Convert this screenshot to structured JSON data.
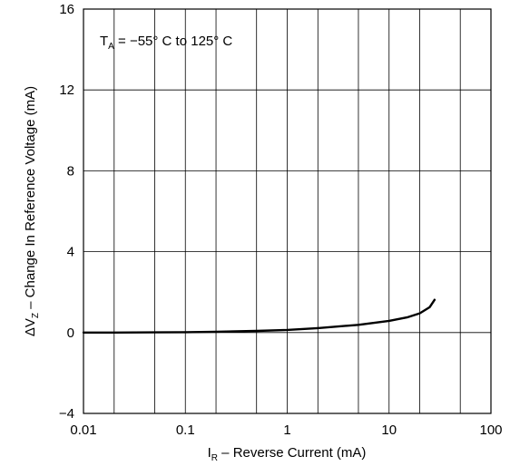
{
  "chart_data": {
    "type": "line",
    "title": "",
    "annotation": {
      "symbol": "T",
      "subscript": "A",
      "text": " = −55° C to 125° C"
    },
    "xlabel": {
      "symbol": "I",
      "subscript": "R",
      "text": " – Reverse Current (mA)"
    },
    "ylabel": {
      "symbol": "ΔV",
      "subscript": "Z",
      "text": " – Change In Reference Voltage (mA)"
    },
    "xscale": "log",
    "xlim": [
      0.01,
      100
    ],
    "ylim": [
      -4,
      16
    ],
    "x_ticks": [
      0.01,
      0.1,
      1,
      10,
      100
    ],
    "x_tick_labels": [
      "0.01",
      "0.1",
      "1",
      "10",
      "100"
    ],
    "y_ticks": [
      -4,
      0,
      4,
      8,
      12,
      16
    ],
    "y_tick_labels": [
      "−4",
      "0",
      "4",
      "8",
      "12",
      "16"
    ],
    "grid": true,
    "series": [
      {
        "color": "#000000",
        "x": [
          0.01,
          0.02,
          0.05,
          0.1,
          0.2,
          0.5,
          1,
          2,
          5,
          10,
          15,
          20,
          25,
          28
        ],
        "y": [
          0.0,
          0.0,
          0.01,
          0.02,
          0.04,
          0.08,
          0.13,
          0.22,
          0.38,
          0.58,
          0.75,
          0.95,
          1.25,
          1.62
        ]
      }
    ]
  }
}
